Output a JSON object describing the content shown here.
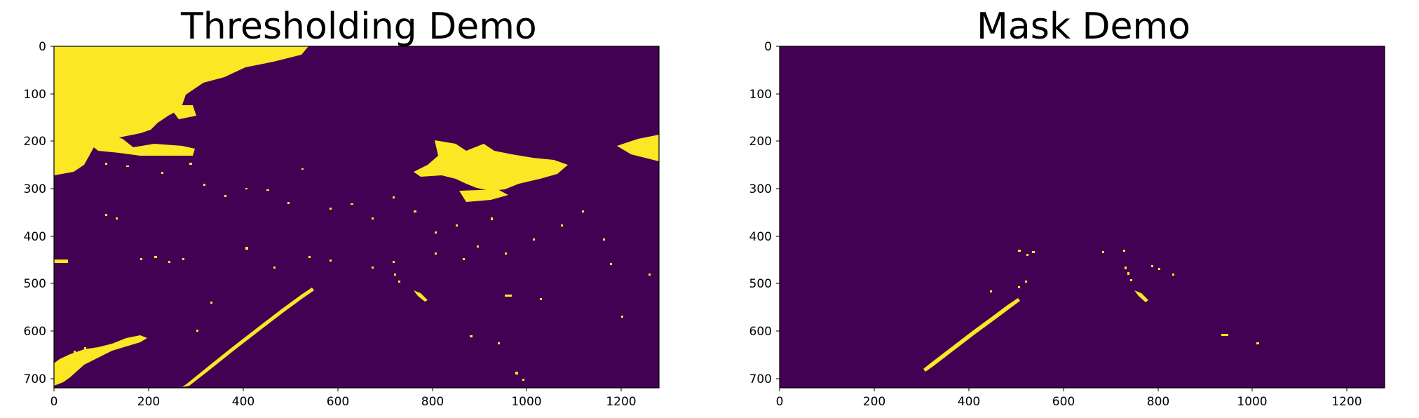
{
  "colors": {
    "background": "#440154",
    "foreground": "#fde725"
  },
  "panels": [
    {
      "title": "Thresholding Demo",
      "image_description": "binary threshold of a road scene: sky region bright, scattered bright speckles, left lane line",
      "xticks": [
        "0",
        "200",
        "400",
        "600",
        "800",
        "1000",
        "1200"
      ],
      "yticks": [
        "0",
        "100",
        "200",
        "300",
        "400",
        "500",
        "600",
        "700"
      ]
    },
    {
      "title": "Mask Demo",
      "image_description": "masked lane region: only lane line fragments remain bright",
      "xticks": [
        "0",
        "200",
        "400",
        "600",
        "800",
        "1000",
        "1200"
      ],
      "yticks": [
        "0",
        "100",
        "200",
        "300",
        "400",
        "500",
        "600",
        "700"
      ]
    }
  ]
}
